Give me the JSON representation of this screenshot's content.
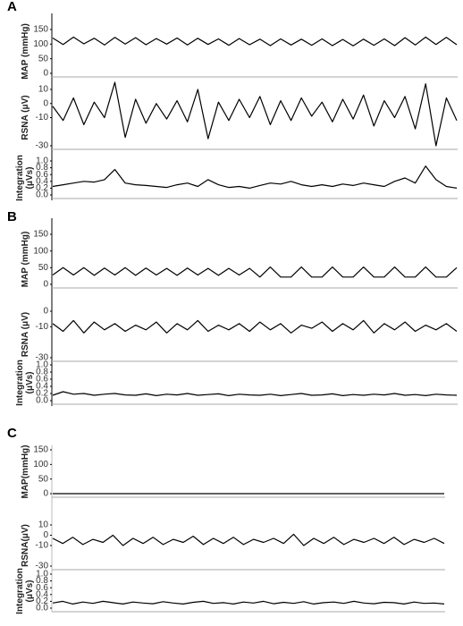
{
  "chart_data": [
    {
      "type": "line",
      "panel": "A",
      "ylabel": [
        "MAP (mmHg)"
      ],
      "ylim": [
        0,
        150
      ],
      "yticks": [
        0,
        50,
        100,
        150
      ],
      "color": "#000000",
      "values": [
        121,
        99,
        124,
        101,
        120,
        97,
        123,
        100,
        122,
        98,
        119,
        100,
        121,
        97,
        120,
        99,
        118,
        96,
        119,
        98,
        117,
        95,
        118,
        97,
        117,
        96,
        118,
        95,
        116,
        94,
        117,
        96,
        118,
        95,
        122,
        97,
        124,
        99,
        123,
        98
      ]
    },
    {
      "type": "line",
      "ylabel": [
        "RSNA (μV)"
      ],
      "ylim": [
        -30,
        10
      ],
      "yticks": [
        -30,
        -10,
        0,
        10
      ],
      "color": "#000000",
      "values": [
        -2,
        -12,
        4,
        -15,
        1,
        -10,
        15,
        -24,
        3,
        -14,
        0,
        -11,
        2,
        -13,
        10,
        -25,
        1,
        -12,
        3,
        -10,
        5,
        -15,
        2,
        -12,
        4,
        -9,
        1,
        -13,
        3,
        -11,
        6,
        -16,
        2,
        -10,
        5,
        -18,
        14,
        -30,
        4,
        -12
      ]
    },
    {
      "type": "line",
      "ylabel": [
        "Integration",
        "(μVs)"
      ],
      "ylim": [
        0,
        1
      ],
      "yticks": [
        {
          "value": 0,
          "label": "0.0"
        },
        0.2,
        0.4,
        0.6,
        0.8,
        {
          "value": 1,
          "label": "1.0"
        }
      ],
      "color": "#000000",
      "values": [
        0.25,
        0.3,
        0.35,
        0.4,
        0.38,
        0.45,
        0.75,
        0.35,
        0.3,
        0.28,
        0.25,
        0.22,
        0.3,
        0.35,
        0.25,
        0.45,
        0.3,
        0.22,
        0.25,
        0.2,
        0.28,
        0.35,
        0.32,
        0.4,
        0.3,
        0.25,
        0.3,
        0.25,
        0.32,
        0.28,
        0.35,
        0.3,
        0.25,
        0.4,
        0.5,
        0.35,
        0.85,
        0.45,
        0.25,
        0.2
      ]
    },
    {
      "type": "line",
      "panel": "B",
      "ylabel": [
        "MAP (mmHg)"
      ],
      "ylim": [
        0,
        150
      ],
      "yticks": [
        0,
        50,
        100,
        150
      ],
      "color": "#000000",
      "values": [
        28,
        50,
        28,
        50,
        27,
        49,
        28,
        50,
        27,
        49,
        28,
        48,
        27,
        49,
        28,
        48,
        27,
        48,
        28,
        48,
        22,
        52,
        22,
        22,
        52,
        22,
        22,
        52,
        22,
        22,
        52,
        22,
        22,
        52,
        22,
        22,
        52,
        22,
        22,
        50
      ]
    },
    {
      "type": "line",
      "ylabel": [
        "RSNA (μV)"
      ],
      "ylim": [
        -30,
        0
      ],
      "yticks": [
        -30,
        -10,
        0
      ],
      "color": "#000000",
      "values": [
        -8,
        -13,
        -6,
        -14,
        -7,
        -12,
        -8,
        -13,
        -9,
        -12,
        -7,
        -14,
        -8,
        -12,
        -6,
        -13,
        -9,
        -12,
        -8,
        -13,
        -7,
        -12,
        -8,
        -14,
        -9,
        -11,
        -7,
        -13,
        -8,
        -12,
        -6,
        -14,
        -8,
        -12,
        -7,
        -13,
        -9,
        -12,
        -8,
        -13
      ]
    },
    {
      "type": "line",
      "ylabel": [
        "Integration",
        "(μVs)"
      ],
      "ylim": [
        0,
        1
      ],
      "yticks": [
        {
          "value": 0,
          "label": "0.0"
        },
        0.2,
        0.4,
        0.6,
        0.8,
        {
          "value": 1,
          "label": "1.0"
        }
      ],
      "color": "#000000",
      "values": [
        0.15,
        0.25,
        0.18,
        0.2,
        0.15,
        0.18,
        0.2,
        0.16,
        0.15,
        0.19,
        0.14,
        0.18,
        0.16,
        0.2,
        0.15,
        0.17,
        0.19,
        0.14,
        0.18,
        0.16,
        0.15,
        0.18,
        0.14,
        0.17,
        0.2,
        0.15,
        0.16,
        0.19,
        0.14,
        0.17,
        0.15,
        0.18,
        0.16,
        0.2,
        0.15,
        0.17,
        0.14,
        0.18,
        0.16,
        0.15
      ]
    },
    {
      "type": "line",
      "panel": "C",
      "ylabel": [
        "MAP(mmHg)"
      ],
      "ylim": [
        0,
        150
      ],
      "yticks": [
        0,
        50,
        100,
        150
      ],
      "color": "#000000",
      "values": [
        0,
        0,
        0,
        0,
        0,
        0,
        0,
        0,
        0,
        0,
        0,
        0,
        0,
        0,
        0,
        0,
        0,
        0,
        0,
        0,
        0,
        0,
        0,
        0,
        0,
        0,
        0,
        0,
        0,
        0,
        0,
        0,
        0,
        0,
        0,
        0,
        0,
        0,
        0,
        0
      ]
    },
    {
      "type": "line",
      "ylabel": [
        "RSNA(μV)"
      ],
      "ylim": [
        -30,
        10
      ],
      "yticks": [
        -30,
        -10,
        0,
        10
      ],
      "color": "#000000",
      "values": [
        -3,
        -8,
        -2,
        -9,
        -4,
        -7,
        0,
        -10,
        -3,
        -8,
        -2,
        -9,
        -4,
        -7,
        -1,
        -9,
        -3,
        -8,
        -2,
        -9,
        -4,
        -7,
        -3,
        -8,
        1,
        -10,
        -3,
        -8,
        -2,
        -9,
        -4,
        -7,
        -3,
        -8,
        -2,
        -9,
        -4,
        -7,
        -3,
        -8
      ]
    },
    {
      "type": "line",
      "ylabel": [
        "Integration",
        "(μVs)"
      ],
      "ylim": [
        0,
        1
      ],
      "yticks": [
        {
          "value": 0,
          "label": "0.0"
        },
        0.2,
        0.4,
        0.6,
        0.8,
        {
          "value": 1,
          "label": "1.0"
        }
      ],
      "color": "#000000",
      "values": [
        0.15,
        0.2,
        0.12,
        0.18,
        0.14,
        0.2,
        0.16,
        0.12,
        0.18,
        0.15,
        0.13,
        0.19,
        0.15,
        0.12,
        0.17,
        0.2,
        0.14,
        0.16,
        0.12,
        0.18,
        0.15,
        0.2,
        0.13,
        0.17,
        0.14,
        0.19,
        0.12,
        0.16,
        0.18,
        0.14,
        0.2,
        0.15,
        0.13,
        0.17,
        0.16,
        0.12,
        0.18,
        0.14,
        0.15,
        0.12
      ]
    }
  ]
}
